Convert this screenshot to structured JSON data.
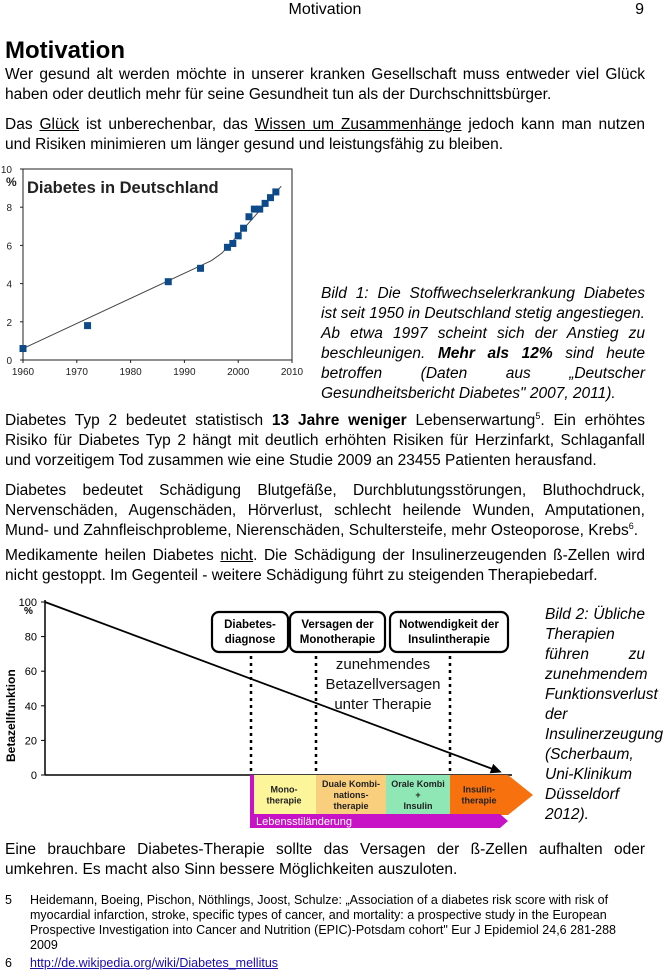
{
  "header": {
    "title": "Motivation",
    "page_number": "9"
  },
  "heading": "Motivation",
  "para1": "Wer gesund alt werden möchte in unserer kranken Gesellschaft muss entweder viel Glück haben oder deutlich mehr für seine Gesundheit tun als der Durchschnittsbürger.",
  "para2": {
    "a": "Das ",
    "link1": "Glück",
    "b": " ist unberechenbar, das ",
    "link2": "Wissen um Zusammenhänge",
    "c": " jedoch kann man nutzen und Risiken minimieren um länger gesund und leistungsfähig zu bleiben."
  },
  "chart_data": [
    {
      "type": "line",
      "title": "Diabetes in Deutschland",
      "ylabel": "%",
      "xlim": [
        1960,
        2010
      ],
      "ylim": [
        0,
        10
      ],
      "x_ticks": [
        "1960",
        "1970",
        "1980",
        "1990",
        "2000",
        "2010"
      ],
      "y_ticks": [
        "0",
        "2",
        "4",
        "6",
        "8",
        "10"
      ],
      "points": [
        {
          "x": 1960,
          "y": 0.6
        },
        {
          "x": 1972,
          "y": 1.8
        },
        {
          "x": 1987,
          "y": 4.1
        },
        {
          "x": 1993,
          "y": 4.8
        },
        {
          "x": 1998,
          "y": 5.9
        },
        {
          "x": 1999,
          "y": 6.1
        },
        {
          "x": 2000,
          "y": 6.5
        },
        {
          "x": 2001,
          "y": 6.9
        },
        {
          "x": 2002,
          "y": 7.5
        },
        {
          "x": 2003,
          "y": 7.9
        },
        {
          "x": 2004,
          "y": 7.9
        },
        {
          "x": 2005,
          "y": 8.2
        },
        {
          "x": 2006,
          "y": 8.5
        },
        {
          "x": 2007,
          "y": 8.8
        }
      ],
      "trend": [
        {
          "x": 1960,
          "y": 0.6
        },
        {
          "x": 1995,
          "y": 5.2
        },
        {
          "x": 1997,
          "y": 5.6
        },
        {
          "x": 2008,
          "y": 9.1
        }
      ]
    },
    {
      "type": "line",
      "ylabel": "Betazellfunktion",
      "y_unit": "%",
      "ylim": [
        0,
        100
      ],
      "y_ticks": [
        "100",
        "80",
        "60",
        "40",
        "20",
        "0"
      ],
      "line": [
        {
          "x": 0,
          "y": 100
        },
        {
          "x": 1,
          "y": 0
        }
      ],
      "stage_boxes": [
        "Diabetes-\ndiagnose",
        "Versagen der\nMonotherapie",
        "Notwendigkeit der\nInsulintherapie"
      ],
      "annotation": "zunehmendes\nBetazellversagen\nunter Therapie",
      "therapy_stages": [
        {
          "label": "Mono-\ntherapie",
          "color": "#fdf59a"
        },
        {
          "label": "Duale Kombi-\nnations-\ntherapie",
          "color": "#f9cf7e"
        },
        {
          "label": "Orale Kombi\n+\nInsulin",
          "color": "#8ee7b4"
        },
        {
          "label": "Insulin-\ntherapie",
          "color": "#f7710e"
        }
      ],
      "bottom_bar": "Lebensstiländerung",
      "bottom_bar_color": "#c712c5"
    }
  ],
  "caption1": {
    "a": "Bild 1: Die Stoffwechselerkrankung Diabetes ist seit 1950 in Deutschland stetig angestiegen. Ab etwa 1997 scheint sich der Anstieg zu beschleunigen. ",
    "bold": "Mehr als 12%",
    "b": " sind heute betroffen (Daten aus „Deutscher Gesundheitsbericht Diabetes\" 2007, 2011)."
  },
  "para3": {
    "a": "Diabetes Typ 2 bedeutet statistisch ",
    "bold": "13 Jahre weniger",
    "b": " Lebenserwartung",
    "sup": "5",
    "c": ". Ein erhöhtes Risiko für Diabetes Typ 2 hängt mit deutlich erhöhten Risiken für Herzinfarkt, Schlaganfall und vorzeitigem Tod zusammen wie eine Studie 2009 an 23455 Patienten herausfand."
  },
  "para4": {
    "a": "Diabetes bedeutet Schädigung Blutgefäße, Durchblutungsstörungen, Bluthochdruck, Nervenschäden, Augenschäden, Hörverlust, schlecht heilende Wunden, Amputationen, Mund- und Zahnfleischprobleme, Nierenschäden, Schultersteife, mehr Osteoporose, Krebs",
    "sup": "6",
    "b": "."
  },
  "para5": {
    "a": "Medikamente heilen Diabetes ",
    "u": "nicht",
    "b": ". Die Schädigung der Insulinerzeugenden ß-Zellen wird nicht gestoppt. Im Gegenteil - weitere Schädigung führt zu steigenden Therapiebedarf."
  },
  "caption2": "Bild 2: Übliche Therapien führen zu zunehmendem Funktionsverlust der Insulinerzeugung (Scherbaum, Uni-Klinikum Düsseldorf 2012).",
  "para6": "Eine brauchbare Diabetes-Therapie sollte das Versagen der ß-Zellen aufhalten oder umkehren. Es macht also Sinn bessere Möglichkeiten auszuloten.",
  "footnotes": [
    {
      "num": "5",
      "text": "Heidemann, Boeing, Pischon, Nöthlings, Joost, Schulze: „Association of a diabetes risk score with risk of myocardial infarction, stroke, specific types of cancer, and mortality: a prospective study in the European Prospective Investigation into Cancer and Nutrition (EPIC)-Potsdam cohort\" Eur J Epidemiol 24,6 281-288 2009"
    },
    {
      "num": "6",
      "link": "http://de.wikipedia.org/wiki/Diabetes_mellitus"
    }
  ]
}
